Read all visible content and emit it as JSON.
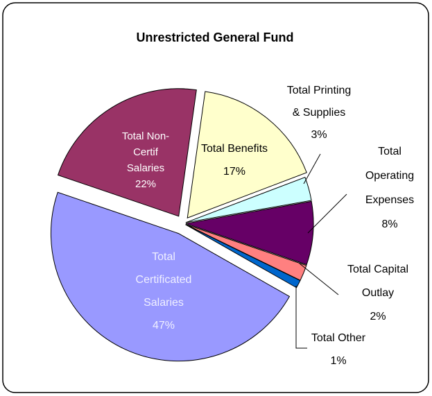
{
  "chart_data": {
    "type": "pie",
    "title": "Unrestricted General Fund",
    "categories": [
      [
        "Total Benefits"
      ],
      [
        "Total Printing",
        "& Supplies"
      ],
      [
        "Total",
        "Operating",
        "Expenses"
      ],
      [
        "Total Capital",
        "Outlay"
      ],
      [
        "Total Other"
      ],
      [
        "Total",
        "Certificated",
        "Salaries"
      ],
      [
        "Total Non-",
        "Certif",
        "Salaries"
      ]
    ],
    "values": [
      17,
      3,
      8,
      2,
      1,
      47,
      22
    ],
    "value_labels": [
      "17%",
      "3%",
      "8%",
      "2%",
      "1%",
      "47%",
      "22%"
    ],
    "colors": [
      "#ffffcc",
      "#ccffff",
      "#660066",
      "#ff8080",
      "#0066cc",
      "#9999ff",
      "#993366"
    ]
  }
}
